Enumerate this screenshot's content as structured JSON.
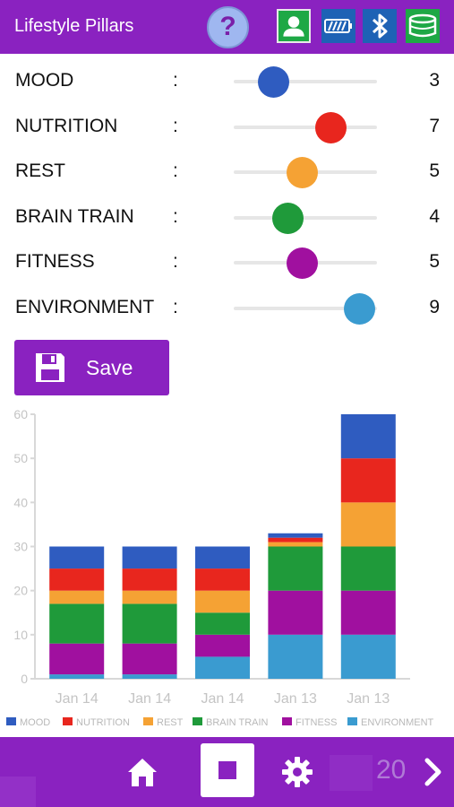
{
  "header": {
    "title": "Lifestyle Pillars",
    "help_label": "?",
    "icons": [
      "user-icon",
      "battery-icon",
      "bluetooth-icon",
      "band-icon"
    ]
  },
  "pillars": [
    {
      "label": "MOOD",
      "value": 3,
      "color": "#2f5cc0"
    },
    {
      "label": "NUTRITION",
      "value": 7,
      "color": "#e8261e"
    },
    {
      "label": "REST",
      "value": 5,
      "color": "#f5a234"
    },
    {
      "label": "BRAIN TRAIN",
      "value": 4,
      "color": "#1f9a3a"
    },
    {
      "label": "FITNESS",
      "value": 5,
      "color": "#a0109f"
    },
    {
      "label": "ENVIRONMENT",
      "value": 9,
      "color": "#3a9bd0"
    }
  ],
  "slider": {
    "min": 0,
    "max": 10,
    "separator": ":"
  },
  "save": {
    "label": "Save"
  },
  "chart_data": {
    "type": "bar",
    "stacked": true,
    "categories": [
      "Jan 14",
      "Jan 14",
      "Jan 14",
      "Jan 13",
      "Jan 13"
    ],
    "ylim": [
      0,
      60
    ],
    "yticks": [
      0,
      10,
      20,
      30,
      40,
      50,
      60
    ],
    "grid": false,
    "legend_position": "bottom",
    "series": [
      {
        "name": "ENVIRONMENT",
        "color": "#3a9bd0",
        "values": [
          1,
          1,
          5,
          10,
          10
        ]
      },
      {
        "name": "FITNESS",
        "color": "#a0109f",
        "values": [
          7,
          7,
          5,
          10,
          10
        ]
      },
      {
        "name": "BRAIN TRAIN",
        "color": "#1f9a3a",
        "values": [
          9,
          9,
          5,
          10,
          10
        ]
      },
      {
        "name": "REST",
        "color": "#f5a234",
        "values": [
          3,
          3,
          5,
          1,
          10
        ]
      },
      {
        "name": "NUTRITION",
        "color": "#e8261e",
        "values": [
          5,
          5,
          5,
          1,
          10
        ]
      },
      {
        "name": "MOOD",
        "color": "#2f5cc0",
        "values": [
          5,
          5,
          5,
          1,
          10
        ]
      }
    ],
    "legend_order": [
      "MOOD",
      "NUTRITION",
      "REST",
      "BRAIN TRAIN",
      "FITNESS",
      "ENVIRONMENT"
    ]
  },
  "bottom": {
    "count": "20",
    "icons": [
      "home-icon",
      "stop-icon",
      "gear-icon",
      "chevron-right-icon"
    ]
  },
  "colors": {
    "brand": "#8a22c0"
  }
}
